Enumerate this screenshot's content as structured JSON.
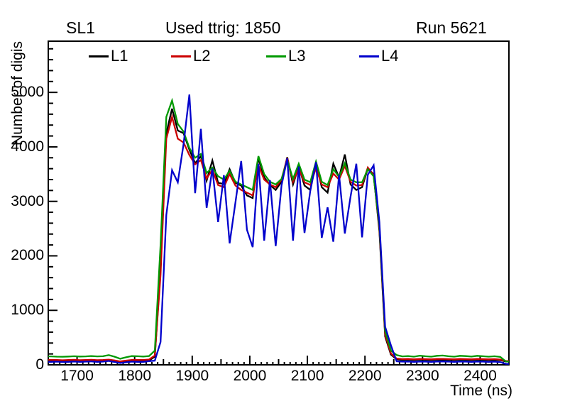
{
  "header": {
    "left_title": "SL1",
    "center_title": "Used ttrig: 1850",
    "right_title": "Run 5621"
  },
  "legend": {
    "items": [
      {
        "label": "L1",
        "color": "#000000"
      },
      {
        "label": "L2",
        "color": "#cc0000"
      },
      {
        "label": "L3",
        "color": "#009900"
      },
      {
        "label": "L4",
        "color": "#0000cc"
      }
    ]
  },
  "axes": {
    "x": {
      "title": "Time (ns)",
      "min": 1650,
      "max": 2450,
      "major_ticks": [
        1700,
        1800,
        1900,
        2000,
        2100,
        2200,
        2300,
        2400
      ],
      "medium_step": 50,
      "minor_step": 10
    },
    "y": {
      "title": "Number of digis",
      "min": 0,
      "max": 5940,
      "major_ticks": [
        0,
        1000,
        2000,
        3000,
        4000,
        5000
      ],
      "minor_step": 200
    }
  },
  "chart_data": {
    "type": "line",
    "title": "Used ttrig: 1850",
    "xlabel": "Time (ns)",
    "ylabel": "Number of digis",
    "xlim": [
      1650,
      2450
    ],
    "ylim": [
      0,
      5940
    ],
    "bin_width_ns": 10,
    "x_start": 1655,
    "x_step": 10,
    "n_bins": 80,
    "legend_position": "top-inside",
    "grid": false,
    "series": [
      {
        "name": "L1",
        "color": "#000000",
        "values": [
          72,
          70,
          68,
          72,
          75,
          70,
          72,
          75,
          70,
          72,
          78,
          68,
          48,
          62,
          72,
          70,
          72,
          80,
          150,
          1750,
          4250,
          4700,
          4300,
          4250,
          3950,
          3700,
          3830,
          3380,
          3750,
          3340,
          3320,
          3590,
          3340,
          3290,
          3110,
          3060,
          3790,
          3440,
          3300,
          3210,
          3360,
          3810,
          3310,
          3640,
          3290,
          3210,
          3710,
          3260,
          3160,
          3690,
          3440,
          3860,
          3310,
          3210,
          3260,
          3600,
          3500,
          2450,
          520,
          190,
          100,
          90,
          92,
          88,
          95,
          90,
          88,
          92,
          95,
          90,
          88,
          92,
          90,
          88,
          92,
          90,
          88,
          90,
          85,
          60
        ]
      },
      {
        "name": "L2",
        "color": "#cc0000",
        "values": [
          90,
          88,
          85,
          88,
          92,
          86,
          88,
          92,
          86,
          88,
          95,
          82,
          62,
          78,
          90,
          88,
          90,
          98,
          170,
          1650,
          4150,
          4550,
          4150,
          4080,
          3850,
          3680,
          3760,
          3420,
          3580,
          3300,
          3260,
          3500,
          3290,
          3210,
          3160,
          3110,
          3660,
          3400,
          3310,
          3260,
          3400,
          3800,
          3360,
          3600,
          3350,
          3300,
          3610,
          3310,
          3260,
          3510,
          3400,
          3650,
          3360,
          3290,
          3300,
          3620,
          3480,
          2500,
          560,
          210,
          115,
          105,
          108,
          102,
          108,
          105,
          102,
          108,
          110,
          105,
          102,
          108,
          105,
          102,
          108,
          105,
          102,
          105,
          98,
          70
        ]
      },
      {
        "name": "L3",
        "color": "#009900",
        "values": [
          155,
          150,
          148,
          152,
          158,
          152,
          155,
          162,
          155,
          158,
          178,
          150,
          112,
          138,
          162,
          158,
          152,
          162,
          260,
          2200,
          4550,
          4850,
          4420,
          4280,
          3980,
          3800,
          3870,
          3520,
          3620,
          3460,
          3400,
          3560,
          3360,
          3310,
          3260,
          3210,
          3830,
          3500,
          3360,
          3310,
          3410,
          3760,
          3410,
          3690,
          3400,
          3350,
          3730,
          3360,
          3300,
          3590,
          3450,
          3700,
          3400,
          3350,
          3350,
          3590,
          3460,
          2550,
          620,
          260,
          180,
          155,
          162,
          150,
          168,
          158,
          150,
          165,
          170,
          158,
          150,
          165,
          160,
          152,
          165,
          158,
          150,
          158,
          145,
          60
        ]
      },
      {
        "name": "L4",
        "color": "#0000cc",
        "values": [
          55,
          58,
          52,
          55,
          60,
          55,
          58,
          62,
          55,
          58,
          72,
          52,
          32,
          46,
          58,
          55,
          55,
          68,
          75,
          420,
          2750,
          3570,
          3350,
          4050,
          4960,
          3150,
          4330,
          2880,
          3600,
          2620,
          3480,
          2230,
          2980,
          3740,
          2480,
          2160,
          3690,
          2280,
          3390,
          2180,
          3290,
          3790,
          2280,
          3640,
          2420,
          3190,
          3720,
          2330,
          2890,
          2260,
          3490,
          2410,
          3090,
          3690,
          2340,
          3490,
          3660,
          2620,
          700,
          360,
          65,
          58,
          60,
          55,
          60,
          58,
          55,
          60,
          62,
          58,
          55,
          60,
          58,
          55,
          60,
          58,
          55,
          58,
          50,
          18
        ]
      }
    ]
  }
}
